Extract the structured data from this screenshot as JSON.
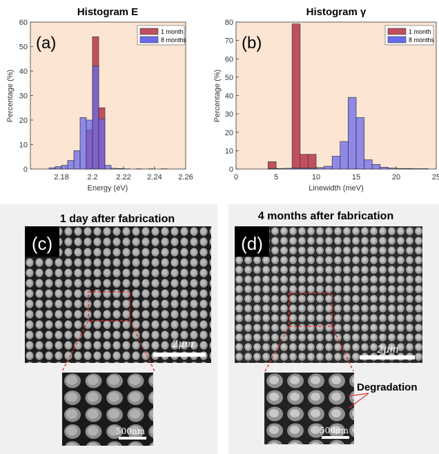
{
  "chart_data": [
    {
      "type": "bar",
      "panel_label": "(a)",
      "title": "Histogram E",
      "xlabel": "Energy (eV)",
      "ylabel": "Percentage (%)",
      "xlim": [
        2.16,
        2.26
      ],
      "ylim": [
        0,
        60
      ],
      "xticks": [
        2.18,
        2.2,
        2.22,
        2.24,
        2.26
      ],
      "xtick_labels": [
        "2.18",
        "2.2",
        "2.22",
        "2.24",
        "2.26"
      ],
      "yticks": [
        0,
        10,
        20,
        30,
        40,
        50,
        60
      ],
      "bin_width": 0.004,
      "grid": false,
      "legend_position": "top-right",
      "series": [
        {
          "name": "1 month",
          "color": "#c0505f",
          "bins": [
            {
              "x0": 2.196,
              "x1": 2.2,
              "value": 16
            },
            {
              "x0": 2.2,
              "x1": 2.204,
              "value": 54
            },
            {
              "x0": 2.204,
              "x1": 2.208,
              "value": 25
            }
          ]
        },
        {
          "name": "8 months",
          "color": "#6a6aee",
          "bins": [
            {
              "x0": 2.172,
              "x1": 2.176,
              "value": 0.5
            },
            {
              "x0": 2.176,
              "x1": 2.18,
              "value": 1
            },
            {
              "x0": 2.18,
              "x1": 2.184,
              "value": 1.5
            },
            {
              "x0": 2.184,
              "x1": 2.188,
              "value": 3.5
            },
            {
              "x0": 2.188,
              "x1": 2.192,
              "value": 7.5
            },
            {
              "x0": 2.192,
              "x1": 2.196,
              "value": 21
            },
            {
              "x0": 2.196,
              "x1": 2.2,
              "value": 20
            },
            {
              "x0": 2.2,
              "x1": 2.204,
              "value": 42
            },
            {
              "x0": 2.204,
              "x1": 2.208,
              "value": 20.5
            },
            {
              "x0": 2.208,
              "x1": 2.212,
              "value": 1.5
            },
            {
              "x0": 2.212,
              "x1": 2.216,
              "value": 0.3
            },
            {
              "x0": 2.216,
              "x1": 2.22,
              "value": 0.2
            },
            {
              "x0": 2.22,
              "x1": 2.224,
              "value": 0.1
            },
            {
              "x0": 2.228,
              "x1": 2.232,
              "value": 0.1
            },
            {
              "x0": 2.236,
              "x1": 2.24,
              "value": 0.1
            },
            {
              "x0": 2.244,
              "x1": 2.248,
              "value": 0.1
            }
          ]
        }
      ]
    },
    {
      "type": "bar",
      "panel_label": "(b)",
      "title": "Histogram γ",
      "xlabel": "Linewidth (meV)",
      "ylabel": "Percentage (%)",
      "xlim": [
        0,
        25
      ],
      "ylim": [
        0,
        80
      ],
      "xticks": [
        0,
        5,
        10,
        15,
        20,
        25
      ],
      "xtick_labels": [
        "0",
        "5",
        "10",
        "15",
        "20",
        "25"
      ],
      "yticks": [
        0,
        10,
        20,
        30,
        40,
        50,
        60,
        70,
        80
      ],
      "bin_width": 1,
      "grid": false,
      "legend_position": "top-right",
      "series": [
        {
          "name": "1 month",
          "color": "#c0505f",
          "bins": [
            {
              "x0": 4,
              "x1": 5,
              "value": 4
            },
            {
              "x0": 7,
              "x1": 8,
              "value": 79
            },
            {
              "x0": 8,
              "x1": 9,
              "value": 8
            },
            {
              "x0": 9,
              "x1": 10,
              "value": 8
            }
          ]
        },
        {
          "name": "8 months",
          "color": "#6a6aee",
          "bins": [
            {
              "x0": 4,
              "x1": 5,
              "value": 0.3
            },
            {
              "x0": 5,
              "x1": 6,
              "value": 0.3
            },
            {
              "x0": 6,
              "x1": 7,
              "value": 0.4
            },
            {
              "x0": 7,
              "x1": 8,
              "value": 0.6
            },
            {
              "x0": 8,
              "x1": 9,
              "value": 0.5
            },
            {
              "x0": 9,
              "x1": 10,
              "value": 0.5
            },
            {
              "x0": 10,
              "x1": 11,
              "value": 0.8
            },
            {
              "x0": 11,
              "x1": 12,
              "value": 1.5
            },
            {
              "x0": 12,
              "x1": 13,
              "value": 7
            },
            {
              "x0": 13,
              "x1": 14,
              "value": 15
            },
            {
              "x0": 14,
              "x1": 15,
              "value": 39
            },
            {
              "x0": 15,
              "x1": 16,
              "value": 28
            },
            {
              "x0": 16,
              "x1": 17,
              "value": 5
            },
            {
              "x0": 17,
              "x1": 18,
              "value": 2.5
            },
            {
              "x0": 18,
              "x1": 19,
              "value": 1
            },
            {
              "x0": 19,
              "x1": 20,
              "value": 0.5
            },
            {
              "x0": 20,
              "x1": 21,
              "value": 0.3
            },
            {
              "x0": 21,
              "x1": 22,
              "value": 0.3
            },
            {
              "x0": 22,
              "x1": 23,
              "value": 0.2
            },
            {
              "x0": 23,
              "x1": 24,
              "value": 0.2
            }
          ]
        }
      ]
    }
  ],
  "sem_panels": [
    {
      "panel_label": "(c)",
      "title": "1 day after fabrication",
      "scale_bar": "2μm",
      "inset_scale_bar": "500nm",
      "annotation": ""
    },
    {
      "panel_label": "(d)",
      "title": "4 months after fabrication",
      "scale_bar": "2μm",
      "inset_scale_bar": "500nm",
      "annotation": "Degradation"
    }
  ]
}
